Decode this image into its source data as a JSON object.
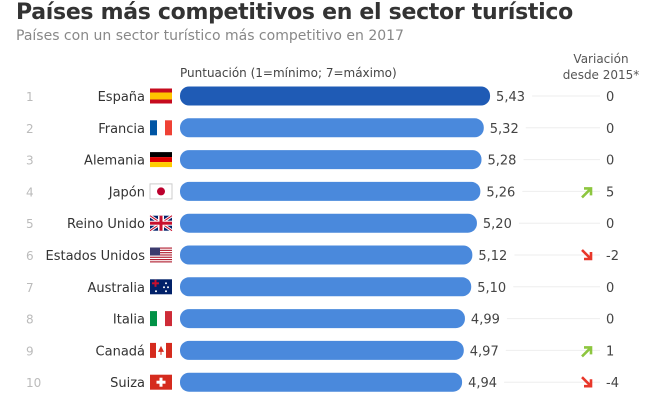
{
  "chart_data": {
    "type": "bar",
    "orientation": "horizontal",
    "title": "Países más competitivos en el sector turístico",
    "subtitle": "Países con un sector turístico más competitivo en 2017",
    "xlabel": "Puntuación (1=mínimo; 7=máximo)",
    "variation_header": "Variación desde 2015*",
    "ranks": [
      1,
      2,
      3,
      4,
      5,
      6,
      7,
      8,
      9,
      10
    ],
    "categories": [
      "España",
      "Francia",
      "Alemania",
      "Japón",
      "Reino Unido",
      "Estados Unidos",
      "Australia",
      "Italia",
      "Canadá",
      "Suiza"
    ],
    "flags": [
      "es",
      "fr",
      "de",
      "jp",
      "gb",
      "us",
      "au",
      "it",
      "ca",
      "ch"
    ],
    "values": [
      5.43,
      5.32,
      5.28,
      5.26,
      5.2,
      5.12,
      5.1,
      4.99,
      4.97,
      4.94
    ],
    "value_labels": [
      "5,43",
      "5,32",
      "5,28",
      "5,26",
      "5,20",
      "5,12",
      "5,10",
      "4,99",
      "4,97",
      "4,94"
    ],
    "variation": [
      "0",
      "0",
      "0",
      "5",
      "0",
      "-2",
      "0",
      "0",
      "1",
      "-4"
    ],
    "colors": {
      "highlight": "#1f5bb5",
      "bar": "#4a89dc",
      "up": "#8dc63f",
      "down": "#e8372a"
    }
  }
}
